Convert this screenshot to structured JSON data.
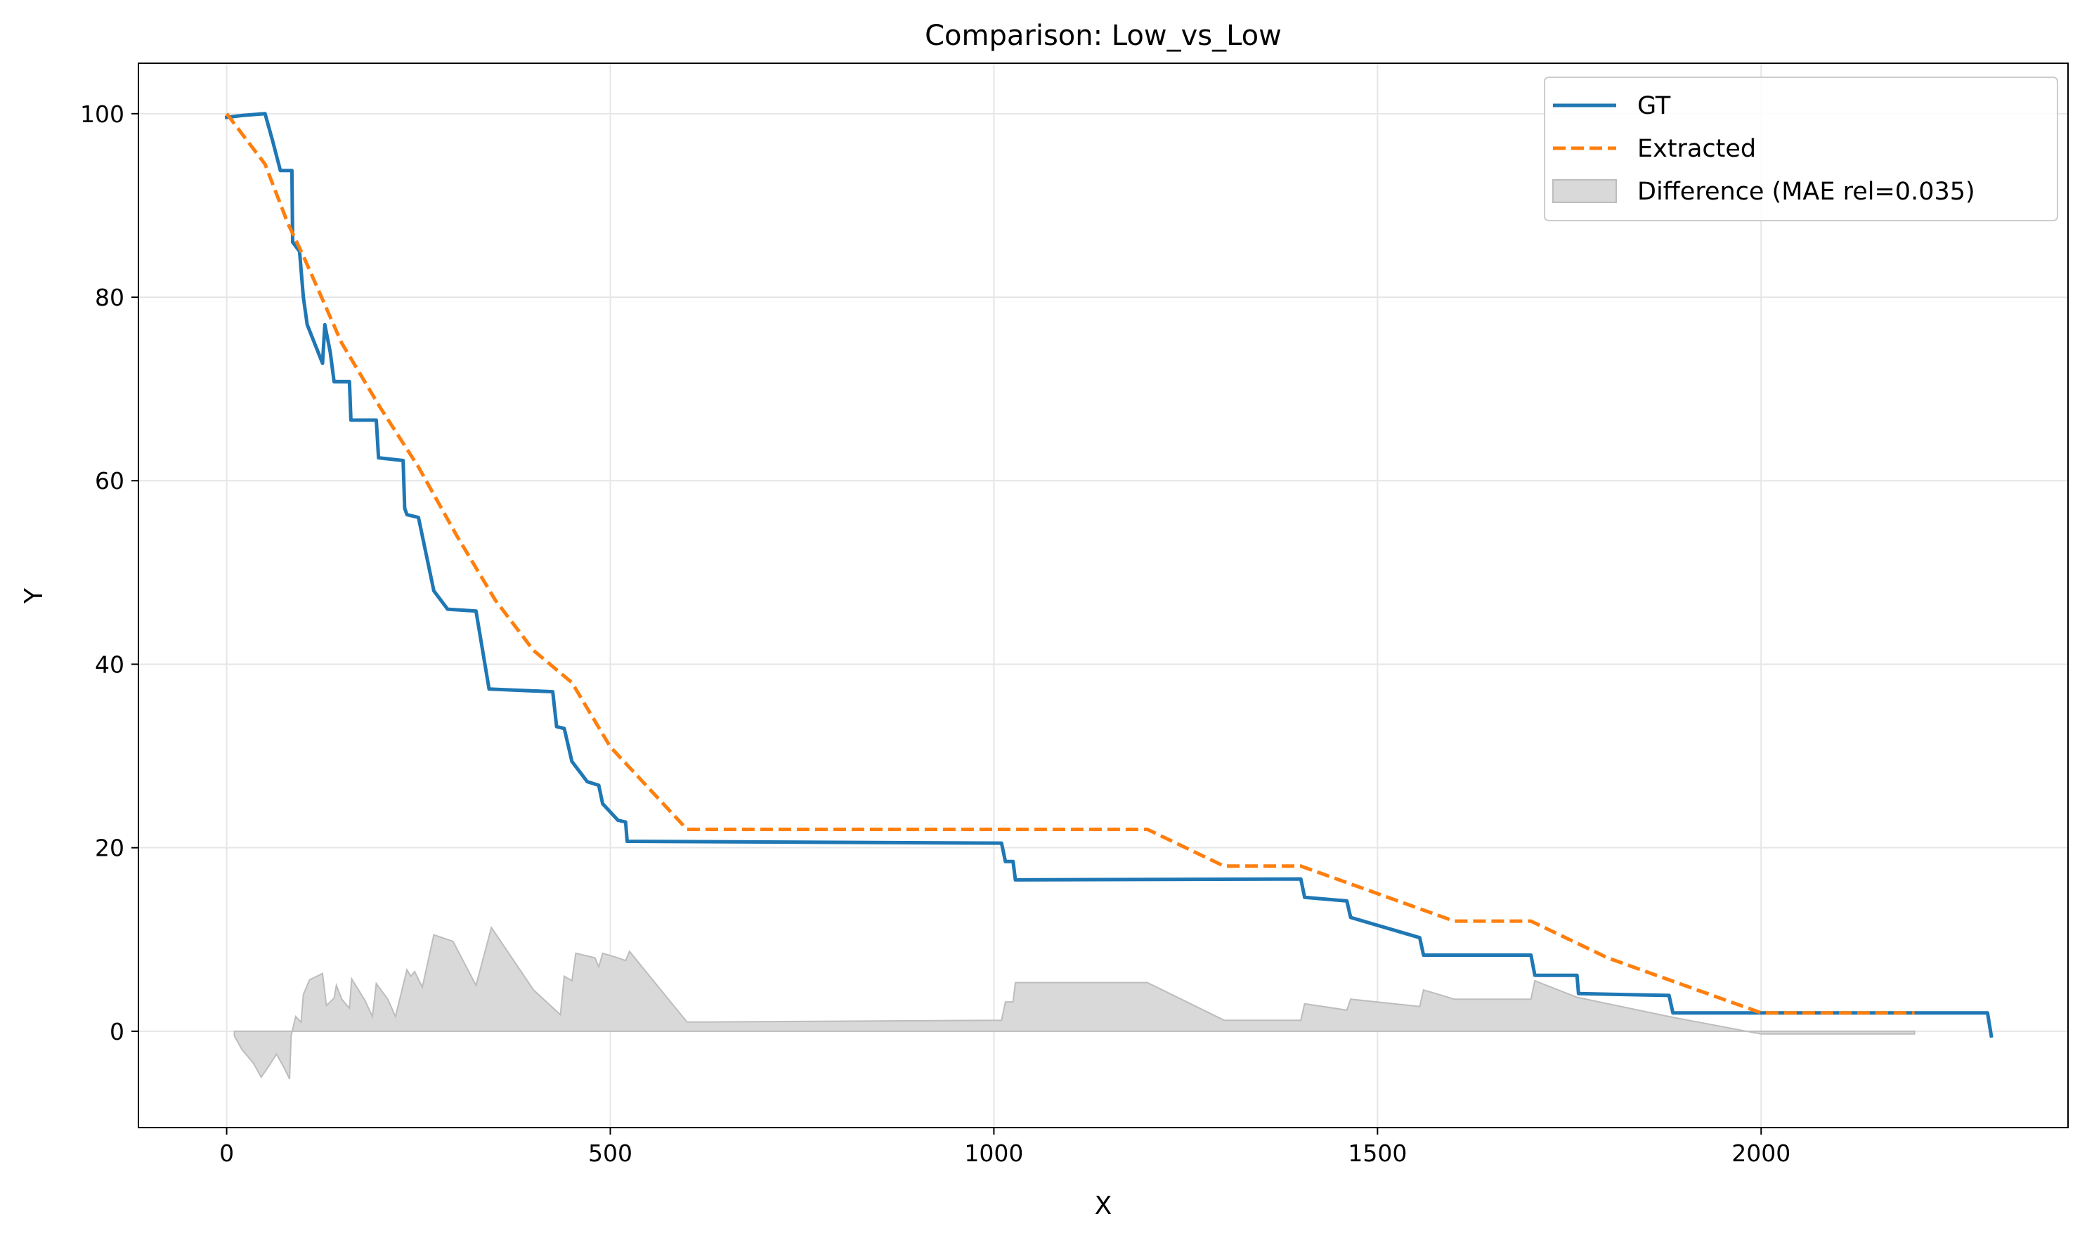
{
  "chart_data": {
    "type": "line",
    "title": "Comparison: Low_vs_Low",
    "xlabel": "X",
    "ylabel": "Y",
    "xlim": [
      -115,
      2400
    ],
    "ylim": [
      -10.5,
      105.5
    ],
    "xticks": [
      0,
      500,
      1000,
      1500,
      2000
    ],
    "yticks": [
      0,
      20,
      40,
      60,
      80,
      100
    ],
    "grid": true,
    "legend_position": "top-right",
    "series": [
      {
        "name": "GT",
        "color": "#1f77b4",
        "style": "solid",
        "points": [
          [
            0,
            99.6
          ],
          [
            20,
            99.8
          ],
          [
            50,
            100
          ],
          [
            60,
            97
          ],
          [
            70,
            93.8
          ],
          [
            80,
            93.8
          ],
          [
            85,
            93.8
          ],
          [
            86,
            86
          ],
          [
            95,
            85
          ],
          [
            100,
            80
          ],
          [
            105,
            77
          ],
          [
            125,
            72.8
          ],
          [
            128,
            77
          ],
          [
            135,
            74
          ],
          [
            140,
            70.8
          ],
          [
            155,
            70.8
          ],
          [
            160,
            70.8
          ],
          [
            162,
            66.6
          ],
          [
            190,
            66.6
          ],
          [
            195,
            66.6
          ],
          [
            198,
            62.5
          ],
          [
            230,
            62.2
          ],
          [
            232,
            57
          ],
          [
            235,
            56.3
          ],
          [
            250,
            56
          ],
          [
            270,
            48
          ],
          [
            288,
            46
          ],
          [
            325,
            45.8
          ],
          [
            342,
            37.3
          ],
          [
            425,
            37
          ],
          [
            430,
            33.2
          ],
          [
            440,
            33
          ],
          [
            450,
            29.4
          ],
          [
            470,
            27.2
          ],
          [
            485,
            26.8
          ],
          [
            490,
            24.8
          ],
          [
            510,
            23
          ],
          [
            520,
            22.8
          ],
          [
            522,
            20.7
          ],
          [
            1010,
            20.5
          ],
          [
            1015,
            18.5
          ],
          [
            1025,
            18.5
          ],
          [
            1028,
            16.5
          ],
          [
            1400,
            16.6
          ],
          [
            1405,
            14.6
          ],
          [
            1460,
            14.2
          ],
          [
            1465,
            12.4
          ],
          [
            1555,
            10.2
          ],
          [
            1560,
            8.3
          ],
          [
            1700,
            8.3
          ],
          [
            1705,
            6.1
          ],
          [
            1760,
            6.1
          ],
          [
            1762,
            4.1
          ],
          [
            1880,
            3.9
          ],
          [
            1885,
            2
          ],
          [
            2295,
            2
          ],
          [
            2300,
            -0.5
          ]
        ]
      },
      {
        "name": "Extracted",
        "color": "#ff7f0e",
        "style": "dashed",
        "points": [
          [
            0,
            100
          ],
          [
            50,
            94.5
          ],
          [
            80,
            88
          ],
          [
            100,
            84.5
          ],
          [
            150,
            75
          ],
          [
            200,
            68
          ],
          [
            250,
            61.5
          ],
          [
            300,
            54
          ],
          [
            350,
            47
          ],
          [
            400,
            41.5
          ],
          [
            450,
            38
          ],
          [
            500,
            31
          ],
          [
            600,
            22
          ],
          [
            1200,
            22
          ],
          [
            1300,
            18
          ],
          [
            1400,
            18
          ],
          [
            1600,
            12
          ],
          [
            1700,
            12
          ],
          [
            1800,
            8
          ],
          [
            2000,
            2
          ],
          [
            2200,
            2
          ]
        ]
      },
      {
        "name": "Difference (MAE rel=0.035)",
        "color": "#d9d9d9",
        "style": "fill",
        "points": [
          [
            10,
            -0.5
          ],
          [
            20,
            -2
          ],
          [
            35,
            -3.5
          ],
          [
            45,
            -5
          ],
          [
            55,
            -3.8
          ],
          [
            65,
            -2.5
          ],
          [
            75,
            -4
          ],
          [
            82,
            -5.2
          ],
          [
            84,
            -0.5
          ],
          [
            90,
            1.6
          ],
          [
            97,
            1
          ],
          [
            100,
            4
          ],
          [
            108,
            5.6
          ],
          [
            125,
            6.3
          ],
          [
            130,
            2.8
          ],
          [
            140,
            3.6
          ],
          [
            143,
            5
          ],
          [
            150,
            3.5
          ],
          [
            160,
            2.5
          ],
          [
            163,
            5.7
          ],
          [
            180,
            3.4
          ],
          [
            190,
            1.6
          ],
          [
            195,
            5.2
          ],
          [
            210,
            3.5
          ],
          [
            220,
            1.6
          ],
          [
            235,
            6.7
          ],
          [
            240,
            6
          ],
          [
            245,
            6.5
          ],
          [
            255,
            4.8
          ],
          [
            270,
            10.5
          ],
          [
            295,
            9.8
          ],
          [
            325,
            5
          ],
          [
            345,
            11.3
          ],
          [
            400,
            4.5
          ],
          [
            435,
            1.8
          ],
          [
            440,
            6
          ],
          [
            450,
            5.5
          ],
          [
            455,
            8.5
          ],
          [
            480,
            8
          ],
          [
            485,
            7
          ],
          [
            490,
            8.5
          ],
          [
            510,
            8
          ],
          [
            520,
            7.7
          ],
          [
            525,
            8.7
          ],
          [
            600,
            1
          ],
          [
            1010,
            1.2
          ],
          [
            1015,
            3.2
          ],
          [
            1025,
            3.2
          ],
          [
            1028,
            5.3
          ],
          [
            1200,
            5.3
          ],
          [
            1300,
            1.2
          ],
          [
            1400,
            1.2
          ],
          [
            1405,
            3
          ],
          [
            1460,
            2.3
          ],
          [
            1465,
            3.5
          ],
          [
            1555,
            2.7
          ],
          [
            1560,
            4.5
          ],
          [
            1580,
            4
          ],
          [
            1600,
            3.5
          ],
          [
            1700,
            3.5
          ],
          [
            1705,
            5.5
          ],
          [
            1760,
            3.7
          ],
          [
            1880,
            1.6
          ],
          [
            2000,
            -0.3
          ],
          [
            2200,
            -0.3
          ]
        ]
      }
    ]
  }
}
